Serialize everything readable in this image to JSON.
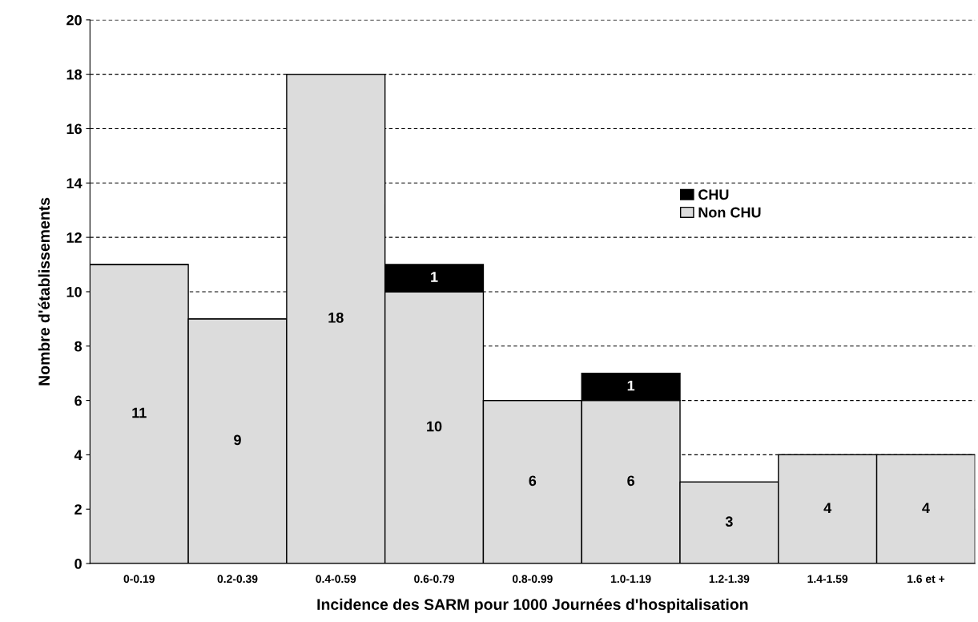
{
  "chart_data": {
    "type": "bar",
    "stacked": true,
    "xlabel": "Incidence des SARM pour 1000 Journées d'hospitalisation",
    "ylabel": "Nombre d'établissements",
    "categories": [
      "0-0.19",
      "0.2-0.39",
      "0.4-0.59",
      "0.6-0.79",
      "0.8-0.99",
      "1.0-1.19",
      "1.2-1.39",
      "1.4-1.59",
      "1.6 et +"
    ],
    "series": [
      {
        "name": "Non CHU",
        "color": "#dcdcdc",
        "values": [
          11,
          9,
          18,
          10,
          6,
          6,
          3,
          4,
          4
        ],
        "value_labels": [
          "11",
          "9",
          "18",
          "10",
          "6",
          "6",
          "3",
          "4",
          "4"
        ]
      },
      {
        "name": "CHU",
        "color": "#000000",
        "values": [
          0,
          0,
          0,
          1,
          0,
          1,
          0,
          0,
          0
        ],
        "value_labels": [
          null,
          null,
          null,
          "1",
          null,
          "1",
          null,
          null,
          null
        ]
      }
    ],
    "ylim": [
      0,
      20
    ],
    "yticks": [
      0,
      2,
      4,
      6,
      8,
      10,
      12,
      14,
      16,
      18,
      20
    ],
    "grid": "y",
    "legend": "right"
  }
}
